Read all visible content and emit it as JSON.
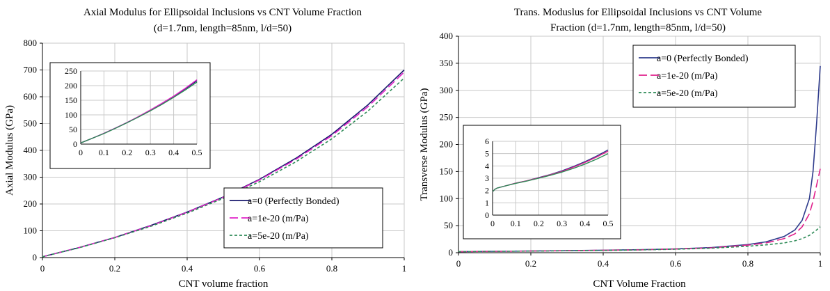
{
  "chart_data": [
    {
      "type": "line",
      "title": [
        "Axial Modulus for Ellipsoidal Inclusions vs CNT Volume Fraction",
        "(d=1.7nm, length=85nm, l/d=50)"
      ],
      "xlabel": "CNT volume fraction",
      "ylabel": "Axial Modulus (GPa)",
      "xlim": [
        0,
        1
      ],
      "ylim": [
        0,
        800
      ],
      "xticks": [
        "0",
        "0.2",
        "0.4",
        "0.6",
        "0.8",
        "1"
      ],
      "yticks": [
        "0",
        "100",
        "200",
        "300",
        "400",
        "500",
        "600",
        "700",
        "800"
      ],
      "grid": true,
      "legend_position": "lower-right",
      "x": [
        0,
        0.1,
        0.2,
        0.3,
        0.4,
        0.5,
        0.6,
        0.7,
        0.8,
        0.9,
        1.0
      ],
      "series": [
        {
          "name": "a=0 (Perfectly Bonded)",
          "color": "#1a1a6e",
          "dash": "solid",
          "values": [
            3,
            37,
            75,
            120,
            170,
            226,
            292,
            370,
            460,
            570,
            700
          ]
        },
        {
          "name": "a=1e-20 (m/Pa)",
          "color": "#e020c8",
          "dash": "long-dash",
          "values": [
            3,
            37,
            75,
            119,
            169,
            225,
            290,
            366,
            455,
            563,
            692
          ]
        },
        {
          "name": "a=5e-20 (m/Pa)",
          "color": "#2e8b57",
          "dash": "short-dash",
          "values": [
            3,
            36,
            74,
            117,
            166,
            221,
            283,
            357,
            443,
            547,
            670
          ]
        }
      ],
      "inset": {
        "xlim": [
          0,
          0.5
        ],
        "ylim": [
          0,
          250
        ],
        "xticks": [
          "0",
          "0.1",
          "0.2",
          "0.3",
          "0.4",
          "0.5"
        ],
        "yticks": [
          "0",
          "50",
          "100",
          "150",
          "200",
          "250"
        ],
        "x": [
          0,
          0.05,
          0.1,
          0.15,
          0.2,
          0.25,
          0.3,
          0.35,
          0.4,
          0.45,
          0.5
        ],
        "series": [
          {
            "color": "#1a1a6e",
            "values": [
              4,
              20,
              37,
              55,
              74,
              94,
              116,
              139,
              163,
              189,
              217
            ]
          },
          {
            "color": "#e020c8",
            "values": [
              4,
              20,
              37,
              55,
              74,
              95,
              117,
              140,
              164,
              191,
              220
            ]
          },
          {
            "color": "#2e8b57",
            "values": [
              4,
              20,
              36,
              54,
              73,
              93,
              114,
              136,
              160,
              185,
              212
            ]
          }
        ]
      }
    },
    {
      "type": "line",
      "title": [
        "Trans. Moduslus for Ellipsoidal Inclusions vs CNT Volume",
        "Fraction (d=1.7nm, length=85nm, l/d=50)"
      ],
      "xlabel": "CNT Volume Fraction",
      "ylabel": "Transverse Modulus (GPa)",
      "xlim": [
        0,
        1
      ],
      "ylim": [
        0,
        400
      ],
      "xticks": [
        "0",
        "0.2",
        "0.4",
        "0.6",
        "0.8",
        "1"
      ],
      "yticks": [
        "0",
        "50",
        "100",
        "150",
        "200",
        "250",
        "300",
        "350",
        "400"
      ],
      "grid": true,
      "legend_position": "top-right",
      "x": [
        0,
        0.1,
        0.2,
        0.3,
        0.4,
        0.5,
        0.6,
        0.7,
        0.8,
        0.85,
        0.9,
        0.93,
        0.95,
        0.97,
        0.98,
        0.99,
        1.0
      ],
      "series": [
        {
          "name": "a=0 (Perfectly Bonded)",
          "color": "#2e3b8c",
          "dash": "solid",
          "values": [
            2,
            2.6,
            3.1,
            3.8,
            4.6,
            5.5,
            7,
            9.5,
            15,
            20,
            30,
            42,
            60,
            100,
            150,
            240,
            345
          ]
        },
        {
          "name": "a=1e-20 (m/Pa)",
          "color": "#e0208c",
          "dash": "long-dash",
          "values": [
            2,
            2.6,
            3.1,
            3.7,
            4.5,
            5.3,
            6.8,
            9,
            14,
            18,
            26,
            35,
            48,
            72,
            95,
            125,
            155
          ]
        },
        {
          "name": "a=5e-20 (m/Pa)",
          "color": "#2e8b57",
          "dash": "short-dash",
          "values": [
            2,
            2.6,
            3.0,
            3.6,
            4.3,
            5.1,
            6.4,
            8.3,
            12,
            14.5,
            18,
            22,
            26,
            32,
            37,
            42,
            48
          ]
        }
      ],
      "inset": {
        "xlim": [
          0,
          0.5
        ],
        "ylim": [
          0,
          6
        ],
        "xticks": [
          "0",
          "0.1",
          "0.2",
          "0.3",
          "0.4",
          "0.5"
        ],
        "yticks": [
          "0",
          "1",
          "2",
          "3",
          "4",
          "5",
          "6"
        ],
        "x": [
          0,
          0.01,
          0.02,
          0.05,
          0.1,
          0.15,
          0.2,
          0.25,
          0.3,
          0.35,
          0.4,
          0.45,
          0.5
        ],
        "series": [
          {
            "color": "#2e3b8c",
            "values": [
              1.9,
              2.1,
              2.2,
              2.35,
              2.6,
              2.8,
              3.05,
              3.3,
              3.6,
              3.95,
              4.35,
              4.8,
              5.3
            ]
          },
          {
            "color": "#e0208c",
            "values": [
              1.9,
              2.1,
              2.2,
              2.35,
              2.6,
              2.8,
              3.03,
              3.28,
              3.55,
              3.9,
              4.28,
              4.72,
              5.2
            ]
          },
          {
            "color": "#2e8b57",
            "values": [
              1.9,
              2.1,
              2.2,
              2.35,
              2.58,
              2.78,
              3.0,
              3.24,
              3.5,
              3.8,
              4.15,
              4.55,
              5.0
            ]
          }
        ]
      }
    }
  ]
}
